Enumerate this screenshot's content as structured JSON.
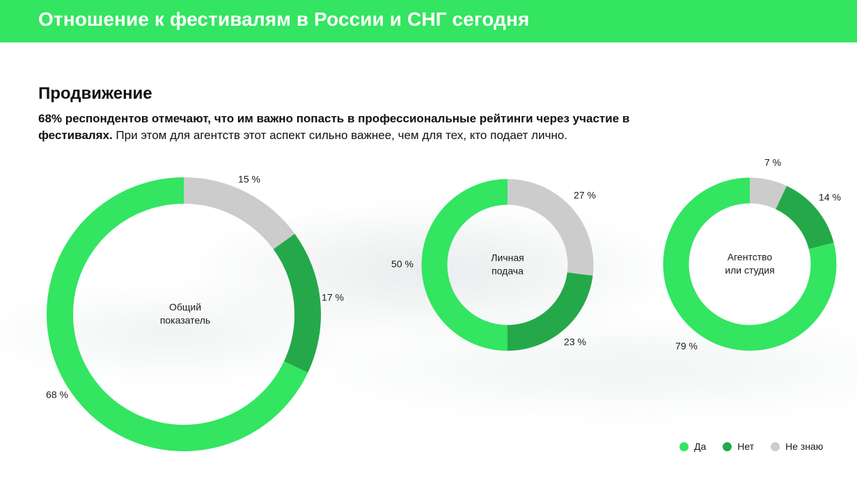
{
  "header": {
    "title": "Отношение к фестивалям в России и СНГ сегодня"
  },
  "section": {
    "title": "Продвижение",
    "description_bold": "68% респондентов отмечают, что им важно попасть в профессиональные рейтинги через участие в фестивалях.",
    "description_rest": " При этом для агентств этот аспект сильно важнее, чем для тех, кто подает лично."
  },
  "colors": {
    "yes": "#33e561",
    "no": "#25a84a",
    "unknown": "#cccccc"
  },
  "legend": [
    {
      "label": "Да",
      "color": "#33e561"
    },
    {
      "label": "Нет",
      "color": "#25a84a"
    },
    {
      "label": "Не знаю",
      "color": "#cccccc"
    }
  ],
  "chart_data": [
    {
      "type": "pie",
      "center_label": [
        "Общий",
        "показатель"
      ],
      "categories": [
        "Да",
        "Нет",
        "Не знаю"
      ],
      "values": [
        68,
        17,
        15
      ],
      "value_labels": [
        "68 %",
        "17 %",
        "15 %"
      ]
    },
    {
      "type": "pie",
      "center_label": [
        "Личная",
        "подача"
      ],
      "categories": [
        "Да",
        "Нет",
        "Не знаю"
      ],
      "values": [
        50,
        23,
        27
      ],
      "value_labels": [
        "50 %",
        "23 %",
        "27 %"
      ]
    },
    {
      "type": "pie",
      "center_label": [
        "Агентство",
        "или студия"
      ],
      "categories": [
        "Да",
        "Нет",
        "Не знаю"
      ],
      "values": [
        79,
        14,
        7
      ],
      "value_labels": [
        "79 %",
        "14 %",
        "7 %"
      ]
    }
  ]
}
